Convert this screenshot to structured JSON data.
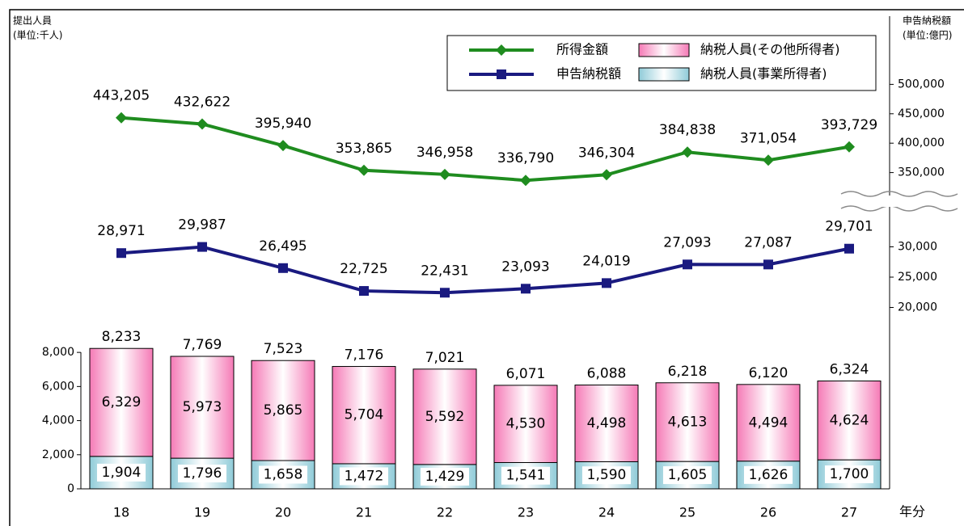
{
  "chart_data": {
    "type": "combo",
    "left_axis_label": [
      "提出人員",
      "(単位:千人)"
    ],
    "right_axis_label": [
      "申告納税額",
      "(単位:億円)"
    ],
    "x_axis_label": "年分",
    "categories": [
      "18",
      "19",
      "20",
      "21",
      "22",
      "23",
      "24",
      "25",
      "26",
      "27"
    ],
    "ylim": [
      0,
      28000
    ],
    "yticks": [
      0,
      {
        "value": 2000,
        "label": "2,000"
      },
      {
        "value": 4000,
        "label": "4,000"
      },
      {
        "value": 6000,
        "label": "6,000"
      },
      {
        "value": 8000,
        "label": "8,000"
      }
    ],
    "y2_segments": [
      {
        "ylim": [
          15000,
          35000
        ],
        "yticks": [
          {
            "value": 20000,
            "label": "20,000"
          },
          {
            "value": 25000,
            "label": "25,000"
          },
          {
            "value": 30000,
            "label": "30,000"
          }
        ]
      },
      {
        "ylim": [
          300000,
          550000
        ],
        "yticks": [
          {
            "value": 350000,
            "label": "350,000"
          },
          {
            "value": 400000,
            "label": "400,000"
          },
          {
            "value": 450000,
            "label": "450,000"
          },
          {
            "value": 500000,
            "label": "500,000"
          }
        ]
      }
    ],
    "series": [
      {
        "name": "所得金額",
        "kind": "line",
        "marker": "diamond",
        "axis": "y2",
        "color": "#1f8c1f",
        "values": [
          443205,
          432622,
          395940,
          353865,
          346958,
          336790,
          346304,
          384838,
          371054,
          393729
        ],
        "value_labels": [
          "443,205",
          "432,622",
          "395,940",
          "353,865",
          "346,958",
          "336,790",
          "346,304",
          "384,838",
          "371,054",
          "393,729"
        ]
      },
      {
        "name": "申告納税額",
        "kind": "line",
        "marker": "square",
        "axis": "y2",
        "color": "#1a1a80",
        "values": [
          28971,
          29987,
          26495,
          22725,
          22431,
          23093,
          24019,
          27093,
          27087,
          29701
        ],
        "value_labels": [
          "28,971",
          "29,987",
          "26,495",
          "22,725",
          "22,431",
          "23,093",
          "24,019",
          "27,093",
          "27,087",
          "29,701"
        ]
      },
      {
        "name": "納税人員(その他所得者)",
        "kind": "bar",
        "color": "#f57ab6",
        "values": [
          6329,
          5973,
          5865,
          5704,
          5592,
          4530,
          4498,
          4613,
          4494,
          4624
        ],
        "value_labels": [
          "6,329",
          "5,973",
          "5,865",
          "5,704",
          "5,592",
          "4,530",
          "4,498",
          "4,613",
          "4,494",
          "4,624"
        ]
      },
      {
        "name": "納税人員(事業所得者)",
        "kind": "bar",
        "color": "#8fcbd8",
        "values": [
          1904,
          1796,
          1658,
          1472,
          1429,
          1541,
          1590,
          1605,
          1626,
          1700
        ],
        "value_labels": [
          "1,904",
          "1,796",
          "1,658",
          "1,472",
          "1,429",
          "1,541",
          "1,590",
          "1,605",
          "1,626",
          "1,700"
        ]
      }
    ],
    "stack_order": [
      3,
      2
    ],
    "totals": [
      8233,
      7769,
      7523,
      7176,
      7021,
      6071,
      6088,
      6218,
      6120,
      6324
    ],
    "total_labels": [
      "8,233",
      "7,769",
      "7,523",
      "7,176",
      "7,021",
      "6,071",
      "6,088",
      "6,218",
      "6,120",
      "6,324"
    ]
  }
}
